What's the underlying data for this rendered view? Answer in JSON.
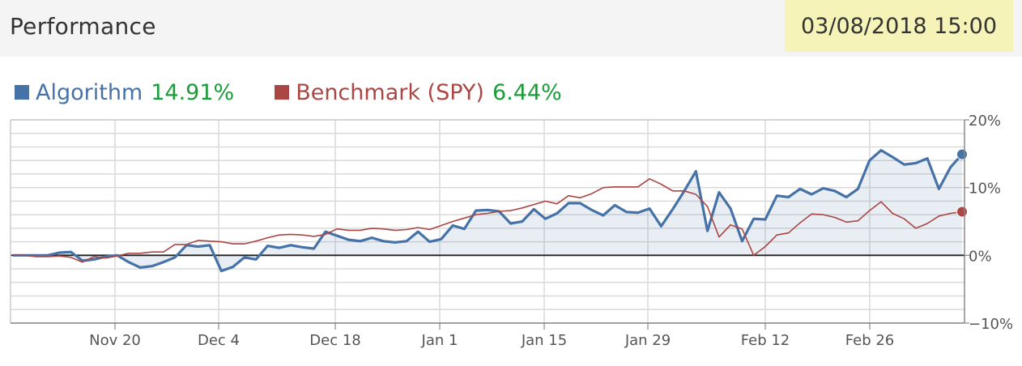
{
  "header": {
    "title": "Performance",
    "timestamp": "03/08/2018 15:00"
  },
  "legend": {
    "items": [
      {
        "label": "Algorithm",
        "value": "14.91%",
        "color": "#4572a7"
      },
      {
        "label": "Benchmark (SPY)",
        "value": "6.44%",
        "color": "#aa4643"
      }
    ],
    "value_color": "#1a9c38"
  },
  "chart_data": {
    "type": "line",
    "title": "",
    "xlabel": "",
    "ylabel": "",
    "x_ticks": [
      "Nov 20",
      "Dec 4",
      "Dec 18",
      "Jan 1",
      "Jan 15",
      "Jan 29",
      "Feb 12",
      "Feb 26"
    ],
    "y_ticks": [
      "−10%",
      "0%",
      "10%",
      "20%"
    ],
    "ylim": [
      -10,
      20
    ],
    "grid": true,
    "legend_position": "top-left",
    "series": [
      {
        "name": "Algorithm",
        "color": "#4572a7",
        "area": true,
        "values": [
          0,
          0,
          0,
          0,
          0.4,
          0.5,
          -0.8,
          -0.6,
          -0.2,
          0,
          -1,
          -1.8,
          -1.6,
          -1,
          -0.3,
          1.5,
          1.3,
          1.5,
          -2.3,
          -1.7,
          -0.3,
          -0.6,
          1.4,
          1.1,
          1.5,
          1.2,
          1,
          3.5,
          2.9,
          2.3,
          2.1,
          2.6,
          2.1,
          1.9,
          2.1,
          3.5,
          2,
          2.4,
          4.4,
          3.9,
          6.6,
          6.7,
          6.5,
          4.7,
          5,
          6.8,
          5.4,
          6.2,
          7.7,
          7.7,
          6.7,
          5.9,
          7.4,
          6.4,
          6.3,
          6.9,
          4.3,
          6.8,
          9.5,
          12.4,
          3.6,
          9.3,
          6.9,
          2.1,
          5.4,
          5.3,
          8.8,
          8.6,
          9.8,
          9,
          9.9,
          9.5,
          8.6,
          9.8,
          14,
          15.5,
          14.5,
          13.4,
          13.6,
          14.3,
          9.8,
          13,
          14.91
        ],
        "end_marker": true
      },
      {
        "name": "Benchmark (SPY)",
        "color": "#aa4643",
        "area": false,
        "values": [
          0,
          0,
          -0.2,
          -0.2,
          -0.1,
          -0.3,
          -1,
          -0.2,
          -0.4,
          -0.1,
          0.3,
          0.3,
          0.5,
          0.5,
          1.6,
          1.6,
          2.2,
          2.1,
          2,
          1.7,
          1.7,
          2.1,
          2.6,
          3,
          3.1,
          3,
          2.8,
          3.1,
          3.9,
          3.7,
          3.7,
          4,
          3.9,
          3.7,
          3.8,
          4.1,
          3.8,
          4.4,
          5,
          5.5,
          6,
          6.2,
          6.5,
          6.6,
          7,
          7.5,
          8,
          7.6,
          8.8,
          8.5,
          9.1,
          10,
          10.1,
          10.1,
          10.1,
          11.3,
          10.5,
          9.5,
          9.5,
          9,
          7.2,
          2.7,
          4.5,
          3.9,
          0,
          1.3,
          3,
          3.3,
          4.8,
          6.1,
          6,
          5.6,
          4.9,
          5.1,
          6.6,
          7.9,
          6.2,
          5.4,
          4,
          4.7,
          5.8,
          6.2,
          6.44
        ],
        "end_marker": true
      }
    ]
  }
}
